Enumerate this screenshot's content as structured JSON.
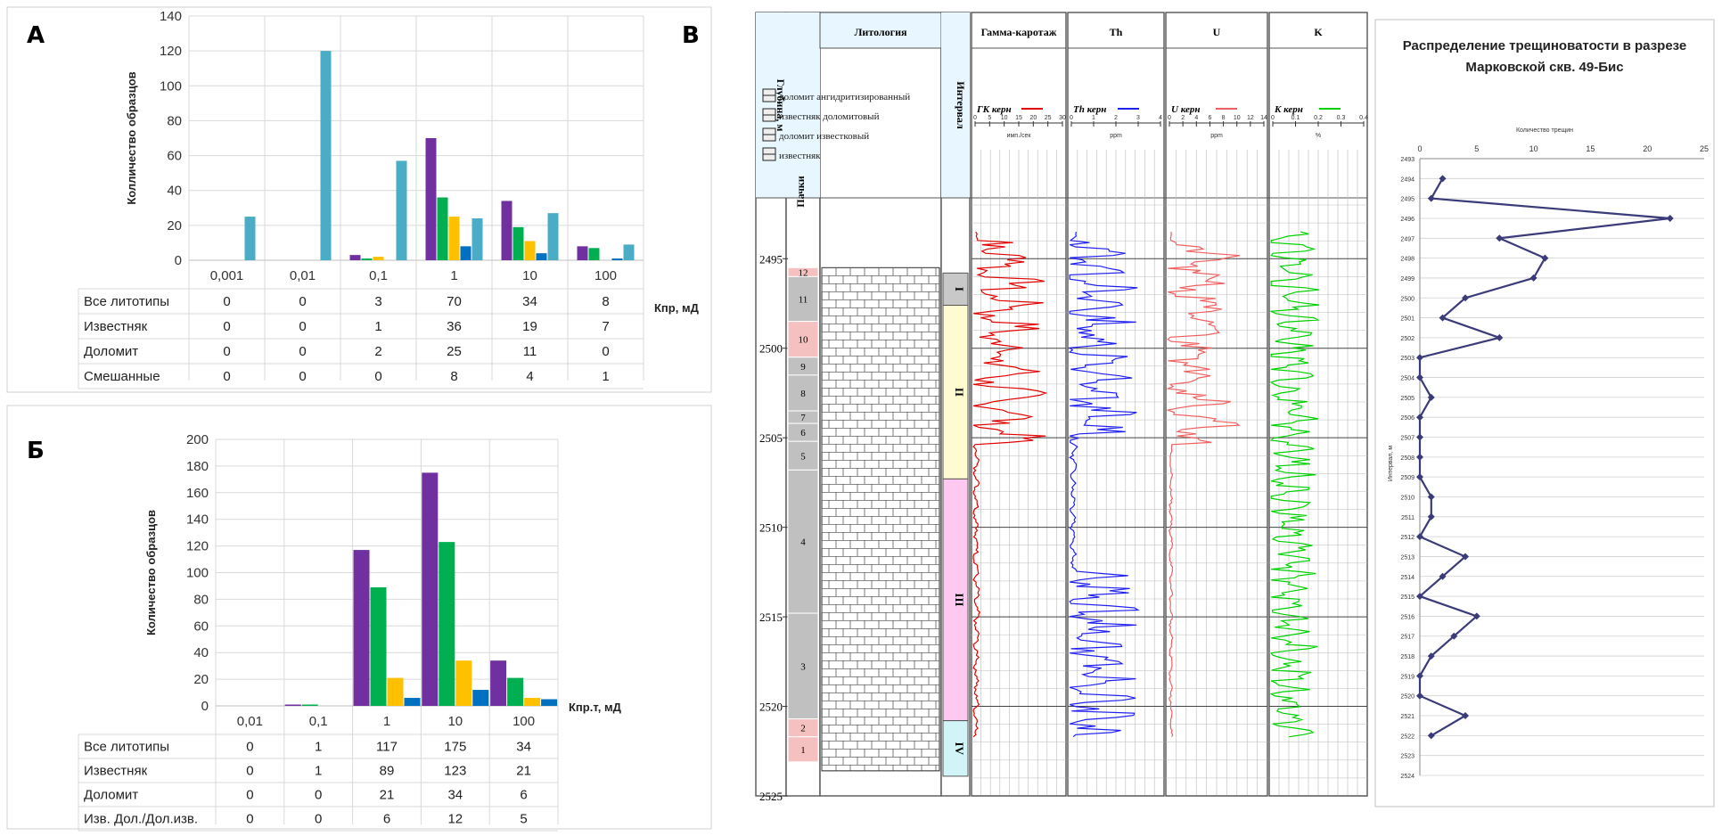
{
  "panels": {
    "a": "А",
    "b": "Б",
    "c": "В"
  },
  "colors": {
    "s1": "#7030a0",
    "s2": "#00b050",
    "s3": "#ffc000",
    "s4": "#0070c0",
    "s5": "#4bacc6",
    "gk": "#e00000",
    "th": "#2020f0",
    "u": "#f06060",
    "k": "#00d000",
    "frac": "#3b3b7a"
  },
  "chart_data": [
    {
      "type": "bar",
      "id": "A",
      "ylabel": "Колличество образцов",
      "xlabel": "Кпр, мД",
      "ylim": [
        0,
        140
      ],
      "yticks": [
        0,
        20,
        40,
        60,
        80,
        100,
        120,
        140
      ],
      "categories": [
        "0,001",
        "0,01",
        "0,1",
        "1",
        "10",
        "100"
      ],
      "series": [
        {
          "name": "Все литотипы",
          "values": [
            0,
            0,
            3,
            70,
            34,
            8
          ]
        },
        {
          "name": "Известняк",
          "values": [
            0,
            0,
            1,
            36,
            19,
            7
          ]
        },
        {
          "name": "Доломит",
          "values": [
            0,
            0,
            2,
            25,
            11,
            0
          ]
        },
        {
          "name": "Смешанные",
          "values": [
            0,
            0,
            0,
            8,
            4,
            1
          ]
        },
        {
          "name": "",
          "values": [
            25,
            120,
            57,
            24,
            27,
            9
          ]
        }
      ],
      "table_series": 4
    },
    {
      "type": "bar",
      "id": "B",
      "ylabel": "Количество образцов",
      "xlabel": "Кпр.т, мД",
      "ylim": [
        0,
        200
      ],
      "yticks": [
        0,
        20,
        40,
        60,
        80,
        100,
        120,
        140,
        160,
        180,
        200
      ],
      "categories": [
        "0,01",
        "0,1",
        "1",
        "10",
        "100"
      ],
      "series": [
        {
          "name": "Все литотипы",
          "values": [
            0,
            1,
            117,
            175,
            34
          ]
        },
        {
          "name": "Известняк",
          "values": [
            0,
            1,
            89,
            123,
            21
          ]
        },
        {
          "name": "Доломит",
          "values": [
            0,
            0,
            21,
            34,
            6
          ]
        },
        {
          "name": "Изв. Дол./Дол.изв.",
          "values": [
            0,
            0,
            6,
            12,
            5
          ]
        }
      ],
      "table_series": 4
    },
    {
      "type": "line",
      "id": "C",
      "title_line1": "Распределение трещиноватости в разрезе",
      "title_line2": "Марковской скв. 49-Бис",
      "xlabel": "Количество трещин",
      "ylabel": "Интервал, м",
      "xlim": [
        0,
        25
      ],
      "xticks": [
        0,
        5,
        10,
        15,
        20,
        25
      ],
      "ylim": [
        2493,
        2524
      ],
      "points": [
        [
          2,
          2494
        ],
        [
          1,
          2495
        ],
        [
          22,
          2496
        ],
        [
          7,
          2497
        ],
        [
          11,
          2498
        ],
        [
          10,
          2499
        ],
        [
          4,
          2500
        ],
        [
          2,
          2501
        ],
        [
          7,
          2502
        ],
        [
          0,
          2503
        ],
        [
          0,
          2504
        ],
        [
          1,
          2505
        ],
        [
          0,
          2506
        ],
        [
          0,
          2507
        ],
        [
          0,
          2508
        ],
        [
          0,
          2509
        ],
        [
          1,
          2510
        ],
        [
          1,
          2511
        ],
        [
          0,
          2512
        ],
        [
          4,
          2513
        ],
        [
          2,
          2514
        ],
        [
          0,
          2515
        ],
        [
          5,
          2516
        ],
        [
          3,
          2517
        ],
        [
          1,
          2518
        ],
        [
          0,
          2519
        ],
        [
          0,
          2520
        ],
        [
          4,
          2521
        ],
        [
          1,
          2522
        ]
      ]
    }
  ],
  "log": {
    "depth_header": "Глубина, м",
    "pack_header": "Пачки",
    "lith_header": "Литология",
    "interval_header": "Интервал",
    "legend": [
      "доломит ангидритизированный",
      "известняк доломитовый",
      "доломит известковый",
      "известняк"
    ],
    "depth_ticks": [
      "2495",
      "2500",
      "2505",
      "2510",
      "2515",
      "2520",
      "2525"
    ],
    "depth_range": [
      2492,
      2525
    ],
    "packs": [
      {
        "label": "12",
        "top": 2495.5,
        "bottom": 2496.0,
        "color": "#f4c0c0"
      },
      {
        "label": "11",
        "top": 2496.0,
        "bottom": 2498.5,
        "color": "#c0c0c0"
      },
      {
        "label": "10",
        "top": 2498.5,
        "bottom": 2500.5,
        "color": "#f4c0c0"
      },
      {
        "label": "9",
        "top": 2500.5,
        "bottom": 2501.5,
        "color": "#c0c0c0"
      },
      {
        "label": "8",
        "top": 2501.5,
        "bottom": 2503.5,
        "color": "#c0c0c0"
      },
      {
        "label": "7",
        "top": 2503.5,
        "bottom": 2504.2,
        "color": "#c0c0c0"
      },
      {
        "label": "6",
        "top": 2504.2,
        "bottom": 2505.2,
        "color": "#c0c0c0"
      },
      {
        "label": "5",
        "top": 2505.2,
        "bottom": 2506.8,
        "color": "#c0c0c0"
      },
      {
        "label": "4",
        "top": 2506.8,
        "bottom": 2514.8,
        "color": "#c0c0c0"
      },
      {
        "label": "3",
        "top": 2514.8,
        "bottom": 2520.7,
        "color": "#c0c0c0"
      },
      {
        "label": "2",
        "top": 2520.7,
        "bottom": 2521.7,
        "color": "#f4c0c0"
      },
      {
        "label": "1",
        "top": 2521.7,
        "bottom": 2523.1,
        "color": "#f4c0c0"
      }
    ],
    "intervals": [
      {
        "label": "I",
        "top": 2495.8,
        "bottom": 2497.6,
        "color": "#c8c8c8"
      },
      {
        "label": "II",
        "top": 2497.6,
        "bottom": 2507.3,
        "color": "#fffbd0"
      },
      {
        "label": "III",
        "top": 2507.3,
        "bottom": 2520.8,
        "color": "#ffc8f0"
      },
      {
        "label": "IV",
        "top": 2520.8,
        "bottom": 2523.9,
        "color": "#d0f4f8"
      }
    ],
    "tracks": [
      {
        "id": "gk",
        "header": "Гамма-каротаж",
        "curve": "ГК керн",
        "scale": [
          "0",
          "5",
          "10",
          "15",
          "20",
          "25",
          "30"
        ],
        "unit": "имп./сек"
      },
      {
        "id": "th",
        "header": "Th",
        "curve": "Th керн",
        "scale": [
          "0",
          "1",
          "2",
          "3",
          "4"
        ],
        "unit": "ppm"
      },
      {
        "id": "u",
        "header": "U",
        "curve": "U керн",
        "scale": [
          "0",
          "2",
          "4",
          "6",
          "8",
          "10",
          "12",
          "14"
        ],
        "unit": "ppm"
      },
      {
        "id": "k",
        "header": "K",
        "curve": "K керн",
        "scale": [
          "0",
          "0.1",
          "0.2",
          "0.3",
          "0.4"
        ],
        "unit": "%"
      }
    ]
  }
}
